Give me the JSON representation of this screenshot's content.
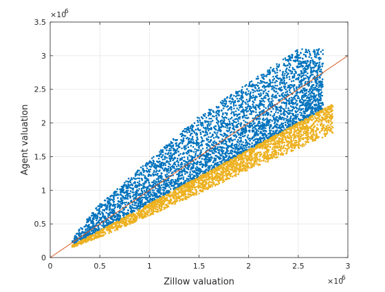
{
  "chart_data": {
    "type": "scatter",
    "title": "",
    "xlabel": "Zillow valuation",
    "ylabel": "Agent valuation",
    "x_exponent_base": "×10",
    "x_exponent_power": "6",
    "y_exponent_base": "×10",
    "y_exponent_power": "6",
    "xlim": [
      0,
      3
    ],
    "ylim": [
      0,
      3.5
    ],
    "x_ticks": [
      "0",
      "0.5",
      "1",
      "1.5",
      "2",
      "2.5",
      "3"
    ],
    "y_ticks": [
      "0",
      "0.5",
      "1",
      "1.5",
      "2",
      "2.5",
      "3",
      "3.5"
    ],
    "grid": true,
    "legend": "none",
    "series": [
      {
        "color": "#0072BD",
        "description_range": "points above lower boundary y ≈ 0.8x",
        "envelope": {
          "x": [
            0.22,
            0.5,
            1.0,
            1.5,
            2.0,
            2.5,
            2.75
          ],
          "y_low": [
            0.18,
            0.4,
            0.8,
            1.2,
            1.6,
            2.0,
            2.2
          ],
          "y_high": [
            0.3,
            0.8,
            1.45,
            2.1,
            2.6,
            3.1,
            3.1
          ]
        }
      },
      {
        "color": "#EDB120",
        "description_range": "points below lower boundary y ≈ 0.8x",
        "envelope": {
          "x": [
            0.22,
            0.5,
            1.0,
            1.5,
            2.0,
            2.5,
            2.85
          ],
          "y_low": [
            0.15,
            0.3,
            0.62,
            0.95,
            1.3,
            1.62,
            1.85
          ],
          "y_high": [
            0.18,
            0.4,
            0.8,
            1.2,
            1.6,
            2.0,
            2.28
          ]
        }
      }
    ],
    "reference_line": {
      "color": "#D95319",
      "x": [
        0,
        3
      ],
      "y": [
        0,
        3
      ]
    }
  }
}
